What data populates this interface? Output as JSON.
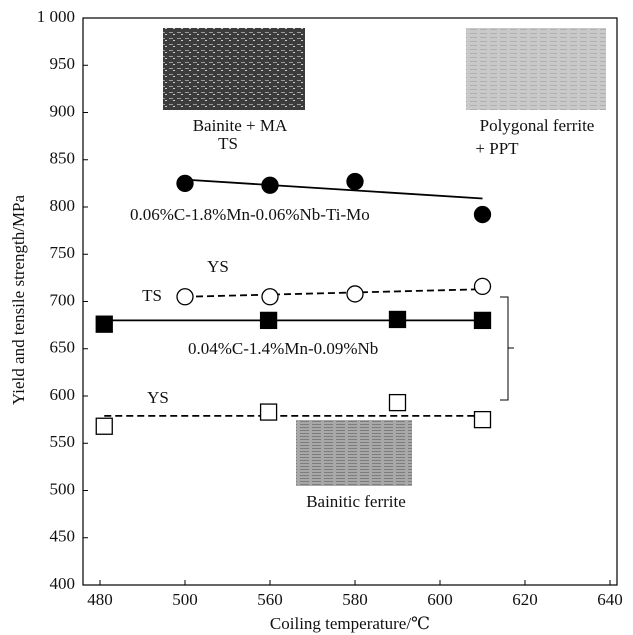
{
  "chart_data": {
    "type": "scatter",
    "x_label": "Coiling temperature/℃",
    "y_label": "Yield and tensile strength/MPa",
    "xticks": [
      480,
      500,
      560,
      580,
      600,
      620,
      640
    ],
    "ylim": [
      400,
      1000
    ],
    "yticks": [
      400,
      450,
      500,
      550,
      600,
      650,
      700,
      750,
      800,
      850,
      900,
      950,
      {
        "value": 1000,
        "label": "1 000"
      }
    ],
    "series": [
      {
        "name": "TS",
        "marker": "circle",
        "filled": true,
        "x": [
          500,
          560,
          580,
          610
        ],
        "values": [
          825,
          823,
          827,
          792
        ],
        "fit_x": [
          500,
          610
        ],
        "fit_y": [
          829,
          809
        ],
        "dashed": false
      },
      {
        "name": "YS",
        "marker": "circle",
        "filled": false,
        "x": [
          500,
          560,
          580,
          610
        ],
        "values": [
          705,
          705,
          708,
          716
        ],
        "fit_x": [
          500,
          610
        ],
        "fit_y": [
          705,
          713
        ],
        "dashed": true
      },
      {
        "name": "TS",
        "marker": "square",
        "filled": true,
        "x": [
          481,
          559,
          590,
          610
        ],
        "values": [
          676,
          680,
          681,
          680
        ],
        "fit_x": [
          481,
          610
        ],
        "fit_y": [
          680,
          680
        ],
        "dashed": false
      },
      {
        "name": "YS",
        "marker": "square",
        "filled": false,
        "x": [
          481,
          559,
          590,
          610
        ],
        "values": [
          568,
          583,
          593,
          575
        ],
        "fit_x": [
          481,
          610
        ],
        "fit_y": [
          579,
          579
        ],
        "dashed": true
      }
    ],
    "annotations": [
      "Bainite + MA",
      "Polygonal ferrite",
      "+ PPT",
      "0.06%C-1.8%Mn-0.06%Nb-Ti-Mo",
      "0.04%C-1.4%Mn-0.09%Nb",
      "Bainitic ferrite"
    ]
  }
}
